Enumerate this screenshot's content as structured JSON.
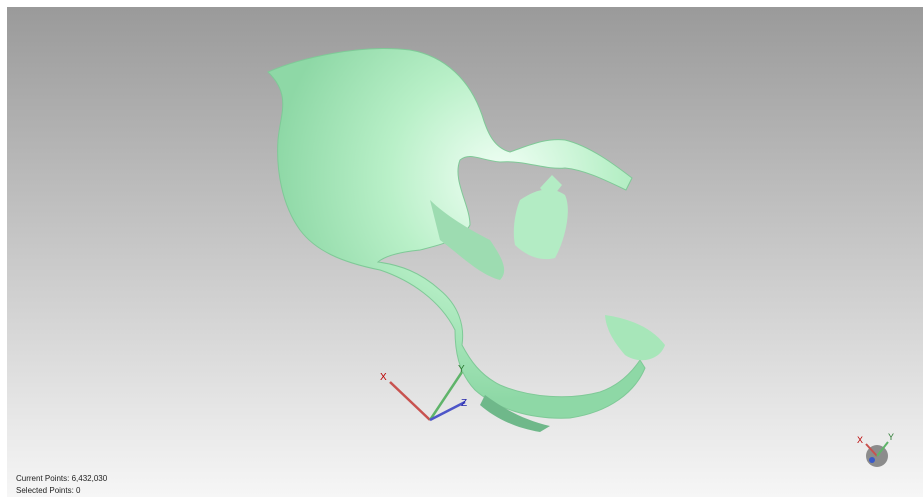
{
  "status": {
    "current_points": "Current Points: 6,432,030",
    "selected_points": "Selected Points: 0"
  },
  "axes": {
    "x": "X",
    "y": "Y",
    "z": "Z"
  },
  "gizmo": {
    "x": "X",
    "y": "Y"
  }
}
